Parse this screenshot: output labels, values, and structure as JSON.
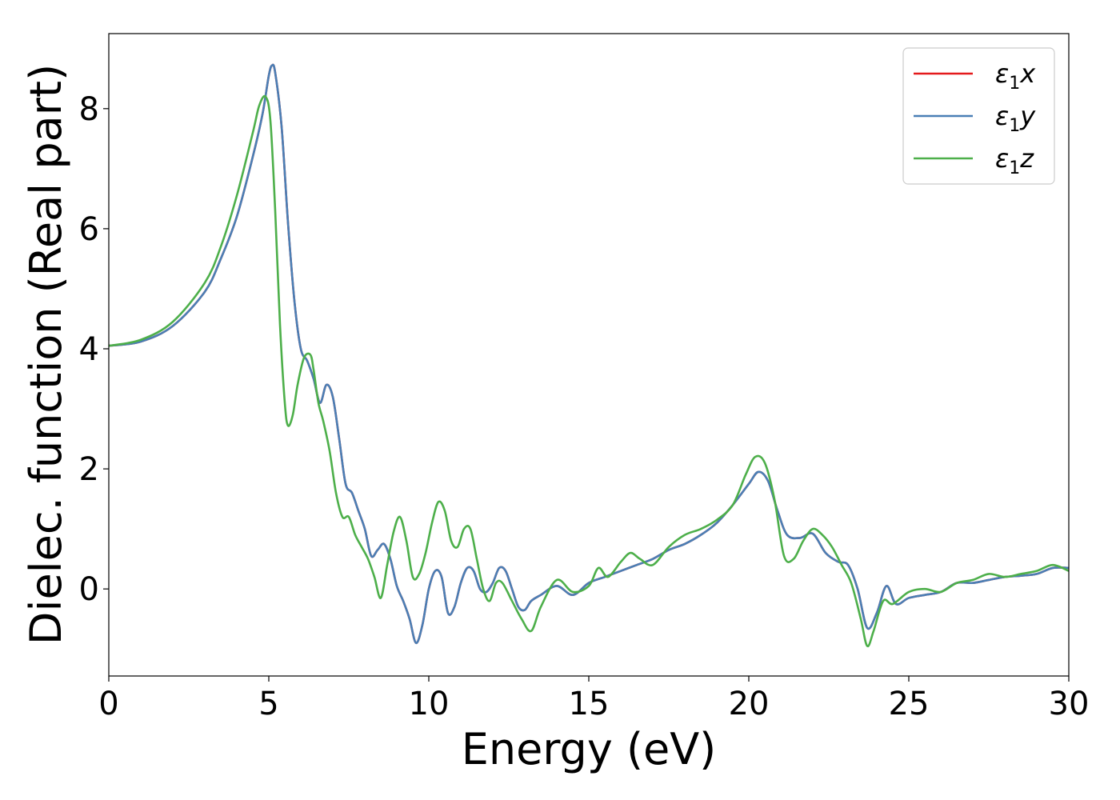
{
  "chart_data": {
    "type": "line",
    "xlabel": "Energy (eV)",
    "ylabel": "Dielec. function (Real part)",
    "xlim": [
      0,
      30
    ],
    "ylim": [
      -1.45,
      9.25
    ],
    "xticks": [
      0,
      5,
      10,
      15,
      20,
      25,
      30
    ],
    "yticks": [
      0,
      2,
      4,
      6,
      8
    ],
    "grid": false,
    "legend_position": "top-right",
    "series": [
      {
        "name": "ε₁x",
        "legend": {
          "base": "ε",
          "sub": "1",
          "axis": "x"
        },
        "color": "#e41a1c",
        "x": [
          0,
          1,
          2,
          3,
          3.5,
          4,
          4.5,
          4.8,
          5,
          5.1,
          5.2,
          5.4,
          5.6,
          5.8,
          6,
          6.2,
          6.4,
          6.6,
          6.8,
          7,
          7.2,
          7.4,
          7.6,
          7.8,
          8,
          8.2,
          8.4,
          8.6,
          8.8,
          9,
          9.2,
          9.4,
          9.6,
          9.8,
          10,
          10.2,
          10.4,
          10.6,
          10.8,
          11,
          11.2,
          11.4,
          11.6,
          11.8,
          12,
          12.2,
          12.4,
          12.6,
          12.8,
          13,
          13.2,
          13.5,
          14,
          14.5,
          15,
          15.5,
          16,
          16.5,
          17,
          17.5,
          18,
          18.5,
          19,
          19.5,
          20,
          20.3,
          20.6,
          20.9,
          21.2,
          21.6,
          22,
          22.4,
          22.8,
          23.1,
          23.4,
          23.7,
          24,
          24.3,
          24.6,
          25,
          25.5,
          26,
          26.5,
          27,
          27.5,
          28,
          28.5,
          29,
          29.5,
          30
        ],
        "y": [
          4.05,
          4.12,
          4.38,
          4.95,
          5.5,
          6.2,
          7.2,
          7.9,
          8.55,
          8.72,
          8.6,
          7.7,
          6.1,
          4.8,
          4.0,
          3.8,
          3.5,
          3.1,
          3.4,
          3.2,
          2.5,
          1.75,
          1.6,
          1.3,
          1.0,
          0.55,
          0.65,
          0.75,
          0.5,
          0.05,
          -0.2,
          -0.5,
          -0.9,
          -0.6,
          0.0,
          0.3,
          0.2,
          -0.4,
          -0.3,
          0.1,
          0.35,
          0.3,
          0.0,
          -0.05,
          0.1,
          0.35,
          0.3,
          0.0,
          -0.3,
          -0.35,
          -0.2,
          -0.1,
          0.05,
          -0.1,
          0.1,
          0.2,
          0.3,
          0.4,
          0.5,
          0.65,
          0.75,
          0.9,
          1.1,
          1.4,
          1.75,
          1.95,
          1.8,
          1.3,
          0.9,
          0.85,
          0.92,
          0.6,
          0.45,
          0.4,
          0.0,
          -0.65,
          -0.4,
          0.05,
          -0.25,
          -0.15,
          -0.1,
          -0.05,
          0.1,
          0.1,
          0.15,
          0.2,
          0.22,
          0.25,
          0.35,
          0.35
        ]
      },
      {
        "name": "ε₁y",
        "legend": {
          "base": "ε",
          "sub": "1",
          "axis": "y"
        },
        "color": "#4a7fb5",
        "x": [
          0,
          1,
          2,
          3,
          3.5,
          4,
          4.5,
          4.8,
          5,
          5.1,
          5.2,
          5.4,
          5.6,
          5.8,
          6,
          6.2,
          6.4,
          6.6,
          6.8,
          7,
          7.2,
          7.4,
          7.6,
          7.8,
          8,
          8.2,
          8.4,
          8.6,
          8.8,
          9,
          9.2,
          9.4,
          9.6,
          9.8,
          10,
          10.2,
          10.4,
          10.6,
          10.8,
          11,
          11.2,
          11.4,
          11.6,
          11.8,
          12,
          12.2,
          12.4,
          12.6,
          12.8,
          13,
          13.2,
          13.5,
          14,
          14.5,
          15,
          15.5,
          16,
          16.5,
          17,
          17.5,
          18,
          18.5,
          19,
          19.5,
          20,
          20.3,
          20.6,
          20.9,
          21.2,
          21.6,
          22,
          22.4,
          22.8,
          23.1,
          23.4,
          23.7,
          24,
          24.3,
          24.6,
          25,
          25.5,
          26,
          26.5,
          27,
          27.5,
          28,
          28.5,
          29,
          29.5,
          30
        ],
        "y": [
          4.05,
          4.12,
          4.38,
          4.95,
          5.5,
          6.2,
          7.2,
          7.9,
          8.55,
          8.72,
          8.6,
          7.7,
          6.1,
          4.8,
          4.0,
          3.8,
          3.5,
          3.1,
          3.4,
          3.2,
          2.5,
          1.75,
          1.6,
          1.3,
          1.0,
          0.55,
          0.65,
          0.75,
          0.5,
          0.05,
          -0.2,
          -0.5,
          -0.9,
          -0.6,
          0.0,
          0.3,
          0.2,
          -0.4,
          -0.3,
          0.1,
          0.35,
          0.3,
          0.0,
          -0.05,
          0.1,
          0.35,
          0.3,
          0.0,
          -0.3,
          -0.35,
          -0.2,
          -0.1,
          0.05,
          -0.1,
          0.1,
          0.2,
          0.3,
          0.4,
          0.5,
          0.65,
          0.75,
          0.9,
          1.1,
          1.4,
          1.75,
          1.95,
          1.8,
          1.3,
          0.9,
          0.85,
          0.92,
          0.6,
          0.45,
          0.4,
          0.0,
          -0.65,
          -0.4,
          0.05,
          -0.25,
          -0.15,
          -0.1,
          -0.05,
          0.1,
          0.1,
          0.15,
          0.2,
          0.22,
          0.25,
          0.35,
          0.35
        ]
      },
      {
        "name": "ε₁z",
        "legend": {
          "base": "ε",
          "sub": "1",
          "axis": "z"
        },
        "color": "#4daf4a",
        "x": [
          0,
          1,
          2,
          3,
          3.5,
          4,
          4.5,
          4.7,
          4.9,
          5.05,
          5.2,
          5.35,
          5.5,
          5.6,
          5.75,
          5.9,
          6.1,
          6.3,
          6.4,
          6.55,
          6.7,
          6.9,
          7.1,
          7.3,
          7.5,
          7.7,
          7.9,
          8.1,
          8.3,
          8.5,
          8.7,
          8.9,
          9.1,
          9.3,
          9.5,
          9.7,
          9.9,
          10.1,
          10.3,
          10.5,
          10.7,
          10.9,
          11.1,
          11.3,
          11.5,
          11.7,
          11.9,
          12.1,
          12.3,
          12.6,
          12.9,
          13.2,
          13.5,
          14,
          14.5,
          15,
          15.3,
          15.6,
          16,
          16.3,
          16.6,
          17,
          17.5,
          18,
          18.5,
          19,
          19.5,
          19.9,
          20.2,
          20.5,
          20.8,
          21.1,
          21.4,
          21.7,
          22,
          22.3,
          22.6,
          22.9,
          23.2,
          23.5,
          23.7,
          23.9,
          24.2,
          24.5,
          25,
          25.5,
          26,
          26.5,
          27,
          27.5,
          28,
          28.5,
          29,
          29.5,
          30
        ],
        "y": [
          4.05,
          4.15,
          4.45,
          5.1,
          5.7,
          6.55,
          7.6,
          8.05,
          8.2,
          7.8,
          6.3,
          4.4,
          3.1,
          2.72,
          2.9,
          3.4,
          3.85,
          3.9,
          3.65,
          3.1,
          2.8,
          2.3,
          1.6,
          1.2,
          1.2,
          0.9,
          0.7,
          0.5,
          0.2,
          -0.15,
          0.4,
          0.95,
          1.2,
          0.8,
          0.2,
          0.25,
          0.6,
          1.1,
          1.45,
          1.3,
          0.8,
          0.7,
          1.0,
          1.0,
          0.5,
          0.0,
          -0.2,
          0.1,
          0.1,
          -0.2,
          -0.5,
          -0.7,
          -0.3,
          0.15,
          -0.05,
          0.05,
          0.35,
          0.2,
          0.45,
          0.6,
          0.5,
          0.4,
          0.7,
          0.9,
          1.0,
          1.15,
          1.4,
          1.9,
          2.2,
          2.1,
          1.5,
          0.55,
          0.5,
          0.8,
          1.0,
          0.9,
          0.7,
          0.4,
          0.1,
          -0.5,
          -0.95,
          -0.7,
          -0.2,
          -0.25,
          -0.05,
          0.0,
          -0.05,
          0.1,
          0.15,
          0.25,
          0.2,
          0.25,
          0.3,
          0.4,
          0.3
        ]
      }
    ]
  }
}
